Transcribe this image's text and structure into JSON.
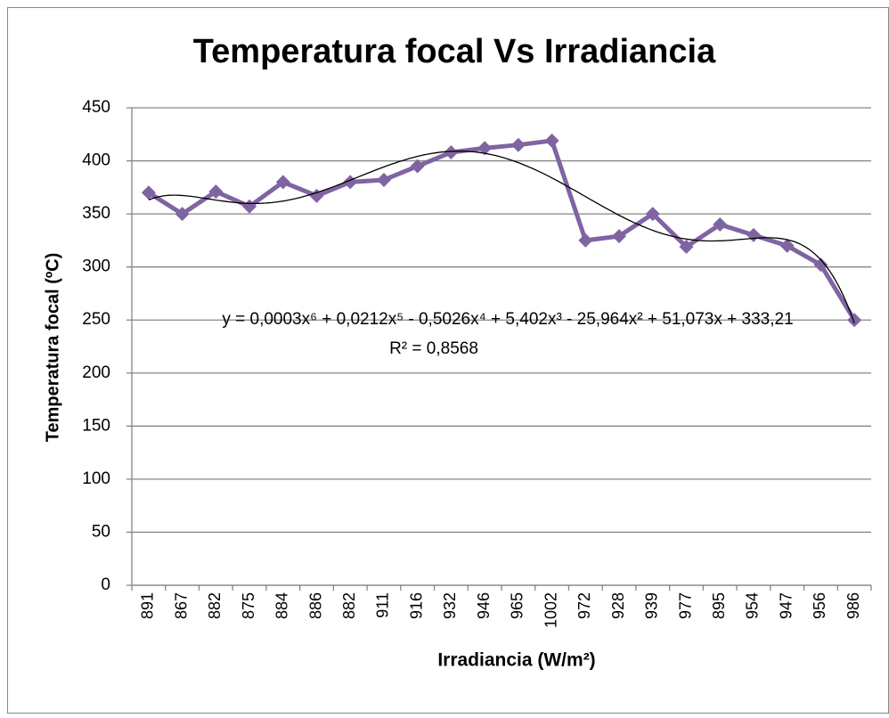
{
  "chart_data": {
    "type": "line",
    "title": "Temperatura focal Vs Irradiancia",
    "x_label": "Irradiancia (W/m²)",
    "y_label": "Temperatura focal (ºC)",
    "categories": [
      "891",
      "867",
      "882",
      "875",
      "884",
      "886",
      "882",
      "911",
      "916",
      "932",
      "946",
      "965",
      "1002",
      "972",
      "928",
      "939",
      "977",
      "895",
      "954",
      "947",
      "956",
      "986"
    ],
    "series": [
      {
        "name": "Temperatura focal",
        "color": "#8064a2",
        "values": [
          370,
          350,
          371,
          357,
          380,
          367,
          380,
          382,
          395,
          408,
          412,
          415,
          419,
          325,
          329,
          350,
          319,
          340,
          330,
          320,
          302,
          250
        ]
      }
    ],
    "trendline": {
      "type": "polynomial",
      "color": "#000000"
    },
    "annotations": [
      "y = 0,0003x⁶ + 0,0212x⁵ - 0,5026x⁴ + 5,402x³ - 25,964x² + 51,073x + 333,21",
      "R² = 0,8568"
    ],
    "ylim": [
      0,
      450
    ],
    "yticks": [
      0,
      50,
      100,
      150,
      200,
      250,
      300,
      350,
      400,
      450
    ],
    "grid": true
  }
}
